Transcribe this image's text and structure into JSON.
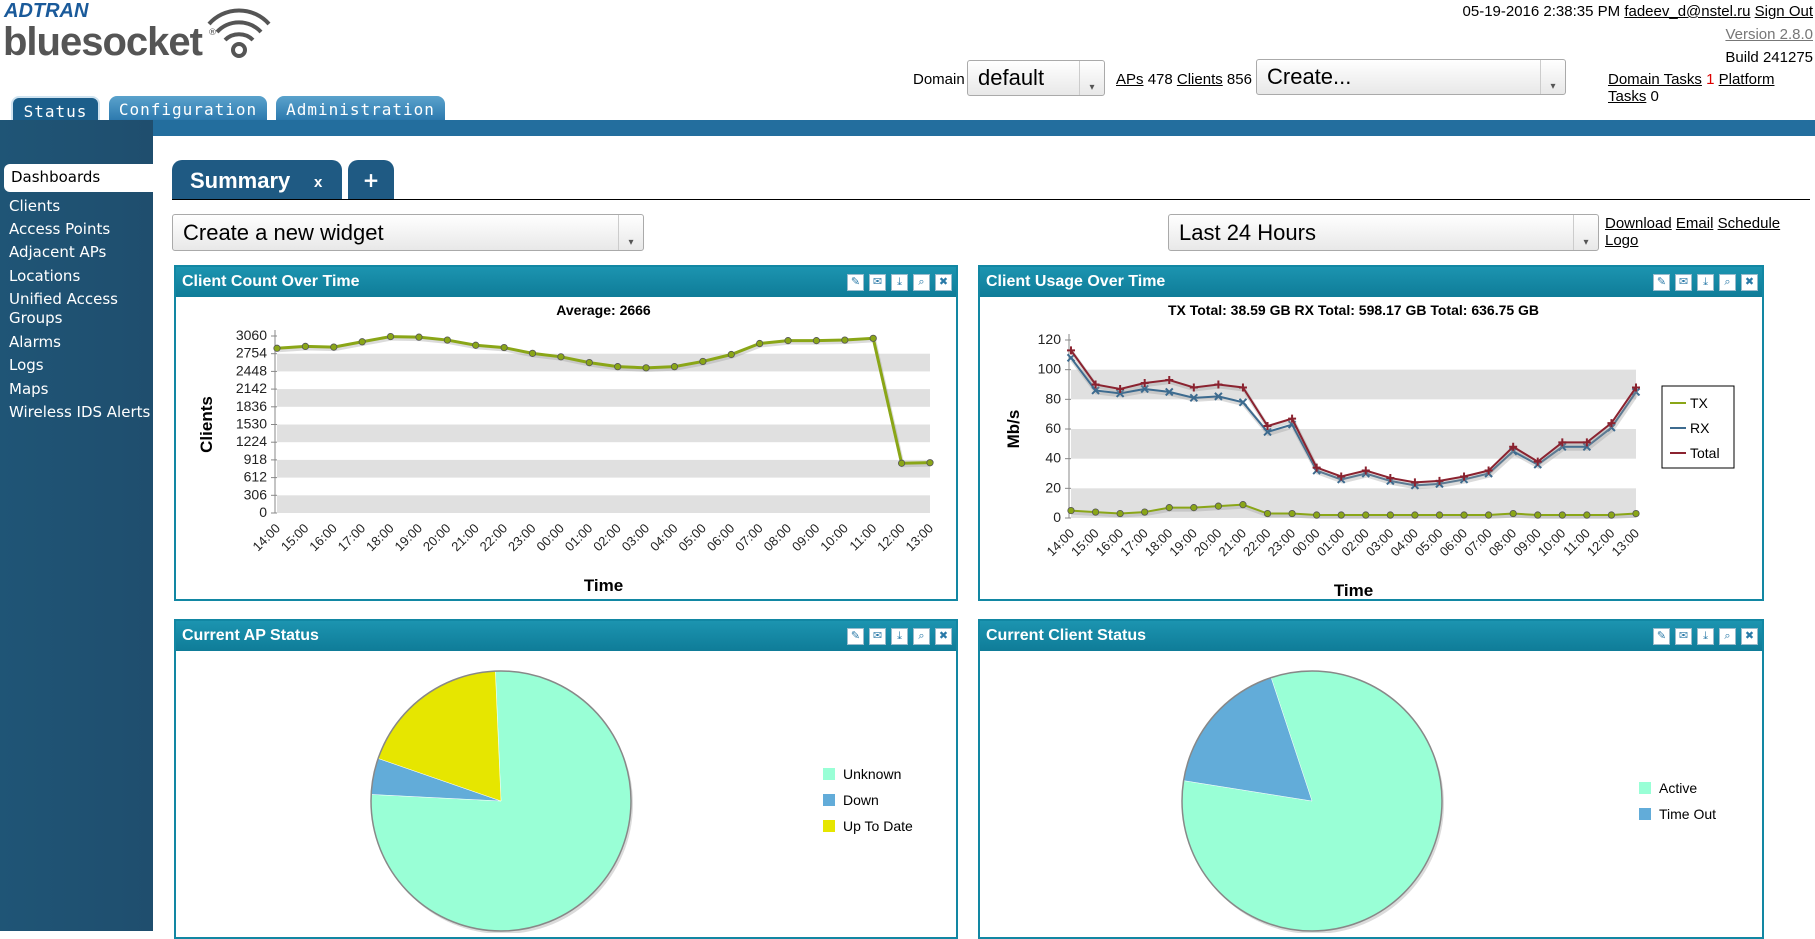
{
  "header": {
    "brand_top": "ADTRAN",
    "brand_main": "bluesocket",
    "datetime": "05-19-2016 2:38:35 PM",
    "user": "fadeev_d@nstel.ru",
    "sign_out": "Sign Out",
    "version": "Version 2.8.0",
    "build": "Build 241275",
    "domain_label": "Domain",
    "domain_value": "default",
    "aps_label": "APs",
    "aps_count": "478",
    "clients_label": "Clients",
    "clients_count": "856",
    "create_value": "Create...",
    "domain_tasks_label": "Domain Tasks",
    "domain_tasks_count": "1",
    "platform_tasks_label": "Platform Tasks",
    "platform_tasks_count": "0"
  },
  "main_tabs": [
    {
      "label": "Status",
      "active": true
    },
    {
      "label": "Configuration",
      "active": false
    },
    {
      "label": "Administration",
      "active": false
    }
  ],
  "sidebar": {
    "items": [
      {
        "label": "Dashboards",
        "active": true
      },
      {
        "label": "Clients"
      },
      {
        "label": "Access Points"
      },
      {
        "label": "Adjacent APs"
      },
      {
        "label": "Locations"
      },
      {
        "label": "Unified Access Groups"
      },
      {
        "label": "Alarms"
      },
      {
        "label": "Logs"
      },
      {
        "label": "Maps"
      },
      {
        "label": "Wireless IDS Alerts"
      }
    ]
  },
  "dashboard": {
    "tab_label": "Summary",
    "tab_close": "x",
    "add_tab": "+",
    "widget_select": "Create a new widget",
    "range_select": "Last 24 Hours",
    "actions": [
      "Download",
      "Email",
      "Schedule",
      "Logo"
    ]
  },
  "colors": {
    "accent": "#1287a3",
    "tx": "#8aa617",
    "rx": "#3d6b8f",
    "total": "#8b2330",
    "pie_unknown": "#99ffd6",
    "pie_down": "#62acd9",
    "pie_uptodate": "#e6e600"
  },
  "widget_icons": [
    "edit-icon",
    "email-icon",
    "download-icon",
    "zoom-icon",
    "delete-icon"
  ],
  "widgets": [
    {
      "title": "Client Count Over Time"
    },
    {
      "title": "Client Usage Over Time"
    },
    {
      "title": "Current AP Status"
    },
    {
      "title": "Current Client Status"
    }
  ],
  "chart_data": [
    {
      "type": "line",
      "title": "Average: 2666",
      "xlabel": "Time",
      "ylabel": "Clients",
      "x": [
        "14:00",
        "15:00",
        "16:00",
        "17:00",
        "18:00",
        "19:00",
        "20:00",
        "21:00",
        "22:00",
        "23:00",
        "00:00",
        "01:00",
        "02:00",
        "03:00",
        "04:00",
        "05:00",
        "06:00",
        "07:00",
        "08:00",
        "09:00",
        "10:00",
        "11:00",
        "12:00",
        "13:00"
      ],
      "yticks": [
        "0",
        "306",
        "612",
        "918",
        "1224",
        "1530",
        "1836",
        "2142",
        "2448",
        "2754",
        "3060"
      ],
      "ylim": [
        0,
        3060
      ],
      "series": [
        {
          "values": [
            2848,
            2880,
            2868,
            2960,
            3050,
            3040,
            2990,
            2900,
            2860,
            2760,
            2700,
            2600,
            2530,
            2510,
            2530,
            2620,
            2740,
            2930,
            2980,
            2980,
            2990,
            3020,
            860,
            870
          ]
        }
      ]
    },
    {
      "type": "line",
      "title": "TX Total: 38.59 GB    RX Total: 598.17 GB    Total: 636.75 GB",
      "xlabel": "Time",
      "ylabel": "Mb/s",
      "x": [
        "14:00",
        "15:00",
        "16:00",
        "17:00",
        "18:00",
        "19:00",
        "20:00",
        "21:00",
        "22:00",
        "23:00",
        "00:00",
        "01:00",
        "02:00",
        "03:00",
        "04:00",
        "05:00",
        "06:00",
        "07:00",
        "08:00",
        "09:00",
        "10:00",
        "11:00",
        "12:00",
        "13:00"
      ],
      "yticks": [
        "0",
        "20",
        "40",
        "60",
        "80",
        "100",
        "120"
      ],
      "ylim": [
        0,
        120
      ],
      "legend_position": "right",
      "series": [
        {
          "name": "TX",
          "values": [
            5,
            4,
            3,
            4,
            7,
            7,
            8,
            9,
            3,
            3,
            2,
            2,
            2,
            2,
            2,
            2,
            2,
            2,
            3,
            2,
            2,
            2,
            2,
            3
          ]
        },
        {
          "name": "RX",
          "values": [
            108,
            86,
            84,
            87,
            85,
            81,
            82,
            78,
            58,
            63,
            32,
            26,
            30,
            25,
            22,
            23,
            26,
            30,
            45,
            36,
            48,
            48,
            61,
            85
          ]
        },
        {
          "name": "Total",
          "values": [
            113,
            90,
            87,
            91,
            93,
            88,
            90,
            88,
            62,
            67,
            34,
            28,
            32,
            27,
            24,
            25,
            28,
            32,
            48,
            38,
            51,
            51,
            64,
            88
          ]
        }
      ]
    },
    {
      "type": "pie",
      "legend_position": "right",
      "labels": [
        "Unknown",
        "Down",
        "Up To Date"
      ],
      "values": [
        76.5,
        4.5,
        19.0
      ]
    },
    {
      "type": "pie",
      "legend_position": "right",
      "labels": [
        "Active",
        "Time Out"
      ],
      "values": [
        82.6,
        17.4
      ]
    }
  ]
}
